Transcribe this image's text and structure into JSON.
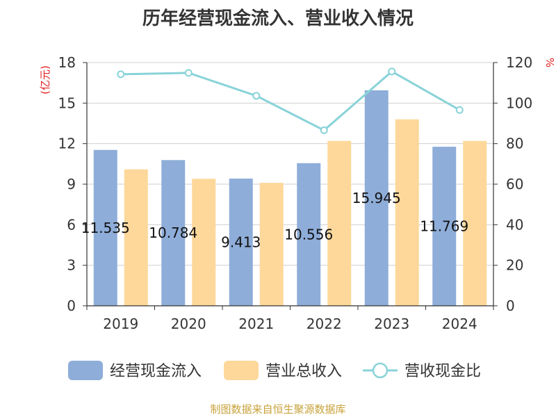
{
  "chart_data": {
    "type": "bar",
    "title": "历年经营现金流入、营业收入情况",
    "categories": [
      "2019",
      "2020",
      "2021",
      "2022",
      "2023",
      "2024"
    ],
    "series": [
      {
        "name": "经营现金流入",
        "type": "bar",
        "axis": "left",
        "values": [
          11.535,
          10.784,
          9.413,
          10.556,
          15.945,
          11.769
        ],
        "labels": [
          "11.535",
          "10.784",
          "9.413",
          "10.556",
          "15.945",
          "11.769"
        ],
        "color": "#8eadd9"
      },
      {
        "name": "营业总收入",
        "type": "bar",
        "axis": "left",
        "values": [
          10.1,
          9.4,
          9.1,
          12.2,
          13.8,
          12.2
        ],
        "color": "#fdd89a"
      },
      {
        "name": "营收现金比",
        "type": "line",
        "axis": "right",
        "values": [
          114.2,
          114.9,
          103.6,
          86.6,
          115.6,
          96.6
        ],
        "color": "#88d3d8"
      }
    ],
    "y_left": {
      "label": "(亿元)",
      "ylim": [
        0,
        18
      ],
      "ticks": [
        "0",
        "3",
        "6",
        "9",
        "12",
        "15",
        "18"
      ]
    },
    "y_right": {
      "label": "%",
      "ylim": [
        0,
        120
      ],
      "ticks": [
        "0",
        "20",
        "40",
        "60",
        "80",
        "100",
        "120"
      ]
    },
    "grid": true,
    "legend_position": "bottom"
  },
  "source_note": "制图数据来自恒生聚源数据库"
}
